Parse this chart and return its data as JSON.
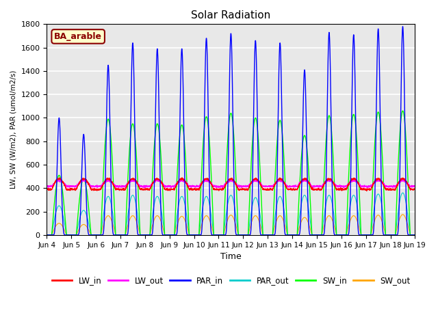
{
  "title": "Solar Radiation",
  "xlabel": "Time",
  "ylabel": "LW, SW (W/m2), PAR (umol/m2/s)",
  "annotation": "BA_arable",
  "annotation_bg": "#FFFFCC",
  "annotation_border": "#8B0000",
  "annotation_text_color": "#8B0000",
  "ylim": [
    0,
    1800
  ],
  "yticks": [
    0,
    200,
    400,
    600,
    800,
    1000,
    1200,
    1400,
    1600,
    1800
  ],
  "xtick_labels": [
    "Jun 4",
    "Jun 5",
    "Jun 6",
    "Jun 7",
    "Jun 8",
    "Jun 9",
    "Jun 10",
    "Jun 11",
    "Jun 12",
    "Jun 13",
    "Jun 14",
    "Jun 15",
    "Jun 16",
    "Jun 17",
    "Jun 18",
    "Jun 19"
  ],
  "n_days": 15,
  "colors": {
    "LW_in": "#FF0000",
    "LW_out": "#FF00FF",
    "PAR_in": "#0000FF",
    "PAR_out": "#00CCCC",
    "SW_in": "#00FF00",
    "SW_out": "#FFA500"
  },
  "PAR_in_peaks": [
    1000,
    860,
    1450,
    1640,
    1590,
    1590,
    1680,
    1720,
    1660,
    1640,
    1410,
    1730,
    1710,
    1760,
    1780
  ],
  "PAR_out_peaks": [
    250,
    210,
    330,
    340,
    330,
    330,
    330,
    340,
    320,
    330,
    340,
    340,
    340,
    350,
    360
  ],
  "SW_in_peaks": [
    510,
    480,
    990,
    950,
    950,
    940,
    1010,
    1040,
    1000,
    980,
    850,
    1020,
    1030,
    1050,
    1060
  ],
  "SW_out_peaks": [
    100,
    90,
    165,
    165,
    165,
    160,
    165,
    170,
    165,
    165,
    150,
    165,
    165,
    170,
    175
  ],
  "LW_in_base": 390,
  "LW_out_base": 415,
  "LW_in_bump": 90,
  "LW_out_bump": 50,
  "bg_color": "#E8E8E8",
  "grid_color": "#FFFFFF",
  "fig_bg": "#FFFFFF"
}
